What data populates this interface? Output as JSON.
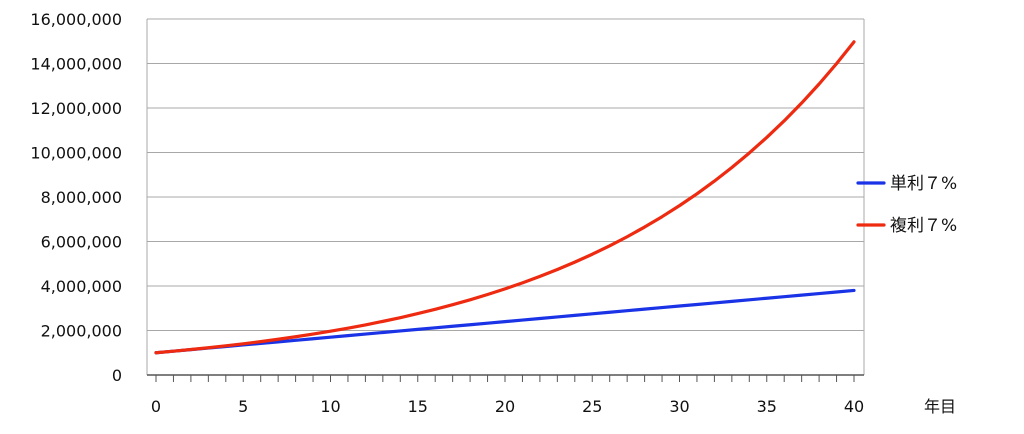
{
  "chart_data": {
    "type": "line",
    "title": "",
    "xlabel": "年目",
    "ylabel": "",
    "xlim": [
      0,
      40
    ],
    "ylim": [
      0,
      16000000
    ],
    "x_ticks": [
      "0",
      "5",
      "10",
      "15",
      "20",
      "25",
      "30",
      "35",
      "40"
    ],
    "y_ticks": [
      "0",
      "2,000,000",
      "4,000,000",
      "6,000,000",
      "8,000,000",
      "10,000,000",
      "12,000,000",
      "14,000,000",
      "16,000,000"
    ],
    "grid": true,
    "legend_position": "right",
    "x": [
      0,
      1,
      2,
      3,
      4,
      5,
      6,
      7,
      8,
      9,
      10,
      11,
      12,
      13,
      14,
      15,
      16,
      17,
      18,
      19,
      20,
      21,
      22,
      23,
      24,
      25,
      26,
      27,
      28,
      29,
      30,
      31,
      32,
      33,
      34,
      35,
      36,
      37,
      38,
      39,
      40
    ],
    "series": [
      {
        "name": "単利７%",
        "color": "#1a33e6",
        "values": [
          1000000,
          1070000,
          1140000,
          1210000,
          1280000,
          1350000,
          1420000,
          1490000,
          1560000,
          1630000,
          1700000,
          1770000,
          1840000,
          1910000,
          1980000,
          2050000,
          2120000,
          2190000,
          2260000,
          2330000,
          2400000,
          2470000,
          2540000,
          2610000,
          2680000,
          2750000,
          2820000,
          2890000,
          2960000,
          3030000,
          3100000,
          3170000,
          3240000,
          3310000,
          3380000,
          3450000,
          3520000,
          3590000,
          3660000,
          3730000,
          3800000
        ]
      },
      {
        "name": "複利７%",
        "color": "#ee2a10",
        "values": [
          1000000,
          1070000,
          1144900,
          1225043,
          1310796,
          1402552,
          1500730,
          1605781,
          1718186,
          1838459,
          1967151,
          2104852,
          2252192,
          2409845,
          2578534,
          2759032,
          2952164,
          3158815,
          3379932,
          3616528,
          3869684,
          4140562,
          4430402,
          4740530,
          5072367,
          5427433,
          5807353,
          6213868,
          6648838,
          7114257,
          7612255,
          8145113,
          8715271,
          9325340,
          9978114,
          10676581,
          11423942,
          12223618,
          13079271,
          13994820,
          14974458
        ]
      }
    ]
  }
}
